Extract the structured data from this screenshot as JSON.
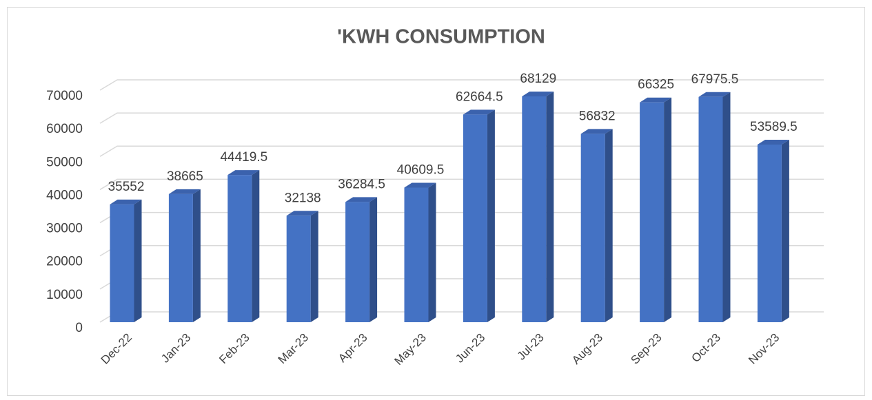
{
  "chart_data": {
    "type": "bar3d",
    "title": "'KWH CONSUMPTION",
    "categories": [
      "Dec-22",
      "Jan-23",
      "Feb-23",
      "Mar-23",
      "Apr-23",
      "May-23",
      "Jun-23",
      "Jul-23",
      "Aug-23",
      "Sep-23",
      "Oct-23",
      "Nov-23"
    ],
    "values": [
      35552,
      38665,
      44419.5,
      32138,
      36284.5,
      40609.5,
      62664.5,
      68129,
      56832,
      66325,
      67975.5,
      53589.5
    ],
    "color": "#4472c4",
    "ylim": [
      0,
      70000
    ],
    "yticks": [
      0,
      10000,
      20000,
      30000,
      40000,
      50000,
      60000,
      70000
    ],
    "grid": true
  }
}
